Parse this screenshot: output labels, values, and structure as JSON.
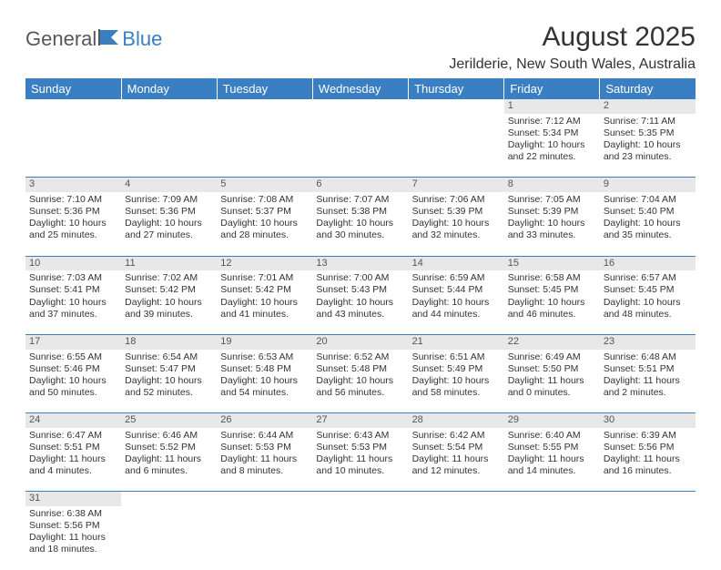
{
  "logo": {
    "part1": "General",
    "part2": "Blue"
  },
  "title": "August 2025",
  "location": "Jerilderie, New South Wales, Australia",
  "colors": {
    "header_bg": "#3a7fc2",
    "header_fg": "#ffffff",
    "daynum_bg": "#e8e8e8",
    "border": "#3a7fc2",
    "logo_gray": "#55585a",
    "logo_blue": "#3a7fc2"
  },
  "day_headers": [
    "Sunday",
    "Monday",
    "Tuesday",
    "Wednesday",
    "Thursday",
    "Friday",
    "Saturday"
  ],
  "weeks": [
    [
      null,
      null,
      null,
      null,
      null,
      {
        "n": "1",
        "sr": "Sunrise: 7:12 AM",
        "ss": "Sunset: 5:34 PM",
        "d1": "Daylight: 10 hours",
        "d2": "and 22 minutes."
      },
      {
        "n": "2",
        "sr": "Sunrise: 7:11 AM",
        "ss": "Sunset: 5:35 PM",
        "d1": "Daylight: 10 hours",
        "d2": "and 23 minutes."
      }
    ],
    [
      {
        "n": "3",
        "sr": "Sunrise: 7:10 AM",
        "ss": "Sunset: 5:36 PM",
        "d1": "Daylight: 10 hours",
        "d2": "and 25 minutes."
      },
      {
        "n": "4",
        "sr": "Sunrise: 7:09 AM",
        "ss": "Sunset: 5:36 PM",
        "d1": "Daylight: 10 hours",
        "d2": "and 27 minutes."
      },
      {
        "n": "5",
        "sr": "Sunrise: 7:08 AM",
        "ss": "Sunset: 5:37 PM",
        "d1": "Daylight: 10 hours",
        "d2": "and 28 minutes."
      },
      {
        "n": "6",
        "sr": "Sunrise: 7:07 AM",
        "ss": "Sunset: 5:38 PM",
        "d1": "Daylight: 10 hours",
        "d2": "and 30 minutes."
      },
      {
        "n": "7",
        "sr": "Sunrise: 7:06 AM",
        "ss": "Sunset: 5:39 PM",
        "d1": "Daylight: 10 hours",
        "d2": "and 32 minutes."
      },
      {
        "n": "8",
        "sr": "Sunrise: 7:05 AM",
        "ss": "Sunset: 5:39 PM",
        "d1": "Daylight: 10 hours",
        "d2": "and 33 minutes."
      },
      {
        "n": "9",
        "sr": "Sunrise: 7:04 AM",
        "ss": "Sunset: 5:40 PM",
        "d1": "Daylight: 10 hours",
        "d2": "and 35 minutes."
      }
    ],
    [
      {
        "n": "10",
        "sr": "Sunrise: 7:03 AM",
        "ss": "Sunset: 5:41 PM",
        "d1": "Daylight: 10 hours",
        "d2": "and 37 minutes."
      },
      {
        "n": "11",
        "sr": "Sunrise: 7:02 AM",
        "ss": "Sunset: 5:42 PM",
        "d1": "Daylight: 10 hours",
        "d2": "and 39 minutes."
      },
      {
        "n": "12",
        "sr": "Sunrise: 7:01 AM",
        "ss": "Sunset: 5:42 PM",
        "d1": "Daylight: 10 hours",
        "d2": "and 41 minutes."
      },
      {
        "n": "13",
        "sr": "Sunrise: 7:00 AM",
        "ss": "Sunset: 5:43 PM",
        "d1": "Daylight: 10 hours",
        "d2": "and 43 minutes."
      },
      {
        "n": "14",
        "sr": "Sunrise: 6:59 AM",
        "ss": "Sunset: 5:44 PM",
        "d1": "Daylight: 10 hours",
        "d2": "and 44 minutes."
      },
      {
        "n": "15",
        "sr": "Sunrise: 6:58 AM",
        "ss": "Sunset: 5:45 PM",
        "d1": "Daylight: 10 hours",
        "d2": "and 46 minutes."
      },
      {
        "n": "16",
        "sr": "Sunrise: 6:57 AM",
        "ss": "Sunset: 5:45 PM",
        "d1": "Daylight: 10 hours",
        "d2": "and 48 minutes."
      }
    ],
    [
      {
        "n": "17",
        "sr": "Sunrise: 6:55 AM",
        "ss": "Sunset: 5:46 PM",
        "d1": "Daylight: 10 hours",
        "d2": "and 50 minutes."
      },
      {
        "n": "18",
        "sr": "Sunrise: 6:54 AM",
        "ss": "Sunset: 5:47 PM",
        "d1": "Daylight: 10 hours",
        "d2": "and 52 minutes."
      },
      {
        "n": "19",
        "sr": "Sunrise: 6:53 AM",
        "ss": "Sunset: 5:48 PM",
        "d1": "Daylight: 10 hours",
        "d2": "and 54 minutes."
      },
      {
        "n": "20",
        "sr": "Sunrise: 6:52 AM",
        "ss": "Sunset: 5:48 PM",
        "d1": "Daylight: 10 hours",
        "d2": "and 56 minutes."
      },
      {
        "n": "21",
        "sr": "Sunrise: 6:51 AM",
        "ss": "Sunset: 5:49 PM",
        "d1": "Daylight: 10 hours",
        "d2": "and 58 minutes."
      },
      {
        "n": "22",
        "sr": "Sunrise: 6:49 AM",
        "ss": "Sunset: 5:50 PM",
        "d1": "Daylight: 11 hours",
        "d2": "and 0 minutes."
      },
      {
        "n": "23",
        "sr": "Sunrise: 6:48 AM",
        "ss": "Sunset: 5:51 PM",
        "d1": "Daylight: 11 hours",
        "d2": "and 2 minutes."
      }
    ],
    [
      {
        "n": "24",
        "sr": "Sunrise: 6:47 AM",
        "ss": "Sunset: 5:51 PM",
        "d1": "Daylight: 11 hours",
        "d2": "and 4 minutes."
      },
      {
        "n": "25",
        "sr": "Sunrise: 6:46 AM",
        "ss": "Sunset: 5:52 PM",
        "d1": "Daylight: 11 hours",
        "d2": "and 6 minutes."
      },
      {
        "n": "26",
        "sr": "Sunrise: 6:44 AM",
        "ss": "Sunset: 5:53 PM",
        "d1": "Daylight: 11 hours",
        "d2": "and 8 minutes."
      },
      {
        "n": "27",
        "sr": "Sunrise: 6:43 AM",
        "ss": "Sunset: 5:53 PM",
        "d1": "Daylight: 11 hours",
        "d2": "and 10 minutes."
      },
      {
        "n": "28",
        "sr": "Sunrise: 6:42 AM",
        "ss": "Sunset: 5:54 PM",
        "d1": "Daylight: 11 hours",
        "d2": "and 12 minutes."
      },
      {
        "n": "29",
        "sr": "Sunrise: 6:40 AM",
        "ss": "Sunset: 5:55 PM",
        "d1": "Daylight: 11 hours",
        "d2": "and 14 minutes."
      },
      {
        "n": "30",
        "sr": "Sunrise: 6:39 AM",
        "ss": "Sunset: 5:56 PM",
        "d1": "Daylight: 11 hours",
        "d2": "and 16 minutes."
      }
    ],
    [
      {
        "n": "31",
        "sr": "Sunrise: 6:38 AM",
        "ss": "Sunset: 5:56 PM",
        "d1": "Daylight: 11 hours",
        "d2": "and 18 minutes."
      },
      null,
      null,
      null,
      null,
      null,
      null
    ]
  ]
}
